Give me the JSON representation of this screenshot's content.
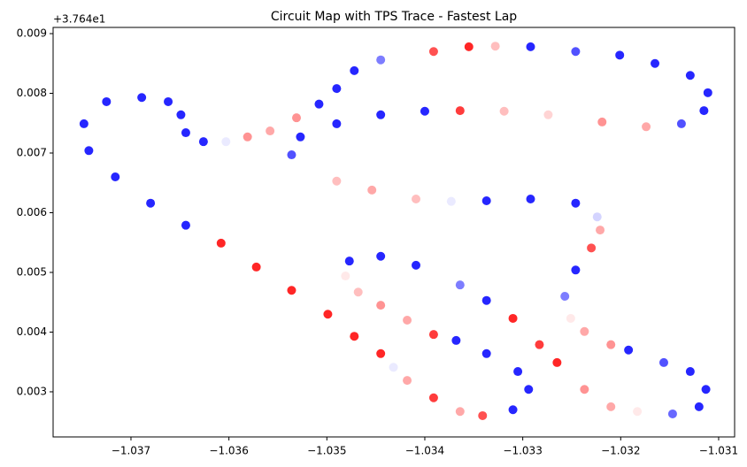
{
  "chart_data": {
    "type": "scatter",
    "title": "Circuit Map with TPS Trace - Fastest Lap",
    "y_offset_label": "+3.764e1",
    "colormap": [
      "#0000ff",
      "#ffffff",
      "#ff0000"
    ],
    "clim": [
      0,
      100
    ],
    "x": [
      -1.03608,
      -1.03572,
      -1.03536,
      -1.03499,
      -1.03472,
      -1.03445,
      -1.03432,
      -1.03418,
      -1.03391,
      -1.03364,
      -1.03341,
      -1.0331,
      -1.03294,
      -1.03305,
      -1.03337,
      -1.03368,
      -1.03391,
      -1.03418,
      -1.03445,
      -1.03468,
      -1.03481,
      -1.03477,
      -1.03445,
      -1.03409,
      -1.03364,
      -1.03337,
      -1.0331,
      -1.03283,
      -1.03265,
      -1.03237,
      -1.0321,
      -1.03183,
      -1.03147,
      -1.0312,
      -1.03113,
      -1.03129,
      -1.03156,
      -1.03192,
      -1.0321,
      -1.03237,
      -1.03251,
      -1.03257,
      -1.03246,
      -1.0323,
      -1.03221,
      -1.03224,
      -1.03246,
      -1.03292,
      -1.03337,
      -1.03373,
      -1.03409,
      -1.03454,
      -1.0349,
      -1.03522,
      -1.03536,
      -1.03527,
      -1.0349,
      -1.03445,
      -1.034,
      -1.03364,
      -1.03319,
      -1.03274,
      -1.03219,
      -1.03174,
      -1.03138,
      -1.03115,
      -1.03111,
      -1.03129,
      -1.03165,
      -1.03201,
      -1.03246,
      -1.03292,
      -1.03328,
      -1.03355,
      -1.03391,
      -1.03418,
      -1.03445,
      -1.03472,
      -1.0349,
      -1.03508,
      -1.03531,
      -1.03558,
      -1.03581,
      -1.03603,
      -1.03626,
      -1.03644,
      -1.03649,
      -1.03662,
      -1.03689,
      -1.03725,
      -1.03748,
      -1.03743,
      -1.03716,
      -1.0368,
      -1.03644
    ],
    "y": [
      0.00549,
      0.00509,
      0.0047,
      0.0043,
      0.00393,
      0.00364,
      0.00341,
      0.00319,
      0.0029,
      0.00267,
      0.0026,
      0.0027,
      0.00304,
      0.00334,
      0.00364,
      0.00386,
      0.00396,
      0.0042,
      0.00445,
      0.00467,
      0.00494,
      0.00519,
      0.00527,
      0.00512,
      0.00479,
      0.00453,
      0.00423,
      0.00379,
      0.00349,
      0.00304,
      0.00275,
      0.00267,
      0.00263,
      0.00275,
      0.00304,
      0.00334,
      0.00349,
      0.0037,
      0.00379,
      0.00401,
      0.00423,
      0.0046,
      0.00504,
      0.00541,
      0.00571,
      0.00593,
      0.00616,
      0.00623,
      0.0062,
      0.00619,
      0.00623,
      0.00638,
      0.00653,
      0.00672,
      0.00697,
      0.00727,
      0.00749,
      0.00764,
      0.0077,
      0.00771,
      0.0077,
      0.00764,
      0.00752,
      0.00744,
      0.00749,
      0.00771,
      0.00801,
      0.0083,
      0.0085,
      0.00864,
      0.0087,
      0.00878,
      0.00879,
      0.00878,
      0.0087,
      0.00864,
      0.00856,
      0.00838,
      0.00808,
      0.00782,
      0.00759,
      0.00737,
      0.00727,
      0.00719,
      0.00719,
      0.00734,
      0.00764,
      0.00786,
      0.00793,
      0.00786,
      0.00749,
      0.00704,
      0.0066,
      0.00616,
      0.00579
    ],
    "c": [
      100,
      100,
      100,
      100,
      100,
      100,
      45,
      70,
      95,
      70,
      90,
      0,
      0,
      0,
      0,
      0,
      95,
      70,
      75,
      65,
      55,
      0,
      0,
      0,
      20,
      0,
      100,
      95,
      100,
      75,
      70,
      55,
      15,
      0,
      0,
      0,
      10,
      0,
      75,
      70,
      55,
      20,
      0,
      90,
      70,
      40,
      0,
      0,
      0,
      45,
      65,
      70,
      65,
      50,
      10,
      0,
      0,
      0,
      0,
      95,
      65,
      60,
      75,
      70,
      10,
      0,
      0,
      0,
      0,
      0,
      10,
      0,
      65,
      100,
      90,
      50,
      20,
      0,
      0,
      0,
      75,
      70,
      75,
      45,
      0,
      0,
      0,
      0,
      0,
      0,
      0,
      0,
      0,
      0,
      0
    ],
    "xlim": [
      -1.037795,
      -1.030837
    ],
    "ylim": [
      0.002244,
      0.009104
    ],
    "xticks": [
      {
        "value": -1.037,
        "label": "−1.037"
      },
      {
        "value": -1.036,
        "label": "−1.036"
      },
      {
        "value": -1.035,
        "label": "−1.035"
      },
      {
        "value": -1.034,
        "label": "−1.034"
      },
      {
        "value": -1.033,
        "label": "−1.033"
      },
      {
        "value": -1.032,
        "label": "−1.032"
      },
      {
        "value": -1.031,
        "label": "−1.031"
      }
    ],
    "yticks": [
      0.003,
      0.004,
      0.005,
      0.006,
      0.007,
      0.008,
      0.009
    ]
  }
}
